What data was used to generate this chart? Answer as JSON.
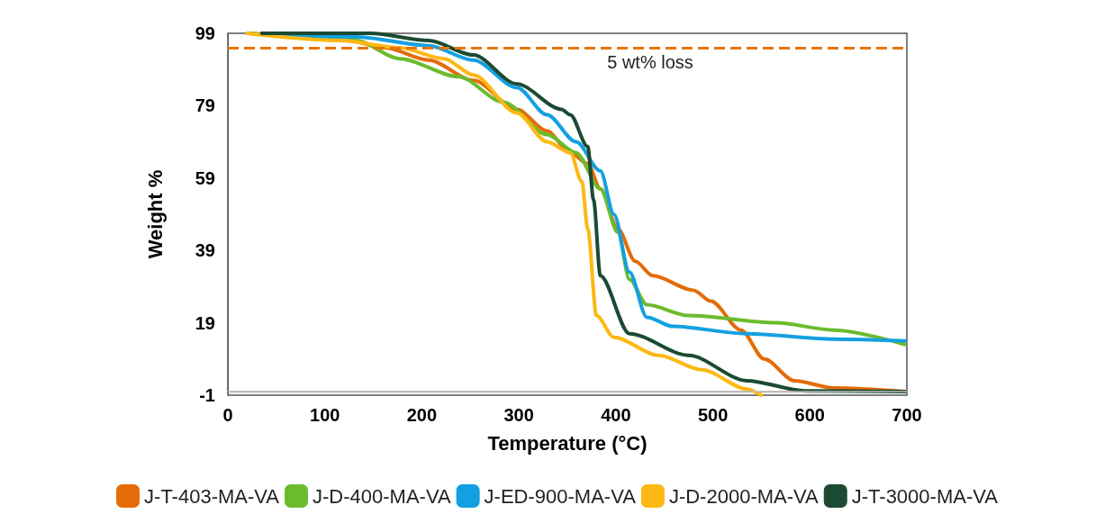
{
  "chart_data": {
    "type": "line",
    "xlabel": "Temperature (°C)",
    "ylabel": "Weight %",
    "xlim": [
      0,
      700
    ],
    "xticks": [
      0,
      100,
      200,
      300,
      400,
      500,
      600,
      700
    ],
    "ylim": [
      -1,
      99
    ],
    "yticks": [
      -1,
      19,
      39,
      59,
      79,
      99
    ],
    "grid": false,
    "legend": "bottom",
    "marker": "none",
    "line_style": "solid",
    "ref_lines": [
      {
        "axis": "y",
        "value": 95,
        "label": "5 wt% loss",
        "color": "#e97400",
        "line_style": "dashed"
      },
      {
        "axis": "y",
        "value": 0,
        "color": "#bfbfbf",
        "line_style": "solid"
      }
    ],
    "series": [
      {
        "name": "J-T-403-MA-VA",
        "color": "#e36c09",
        "x": [
          23,
          116,
          162,
          207,
          253,
          298,
          329,
          353,
          371,
          384,
          402,
          420,
          438,
          480,
          498,
          529,
          553,
          584,
          625,
          698
        ],
        "values": [
          99,
          97.6,
          95,
          91.6,
          86,
          78,
          72,
          66,
          63,
          56,
          45,
          36,
          32,
          28,
          25,
          17,
          9,
          3,
          1,
          0
        ]
      },
      {
        "name": "J-D-400-MA-VA",
        "color": "#6cbb2c",
        "x": [
          23,
          132,
          177,
          238,
          284,
          329,
          359,
          384,
          402,
          414,
          432,
          475,
          565,
          625,
          698
        ],
        "values": [
          99,
          97,
          92,
          87,
          80,
          71,
          66,
          56,
          44,
          31,
          24,
          21,
          19,
          17,
          13
        ]
      },
      {
        "name": "J-ED-900-MA-VA",
        "color": "#13a0e0",
        "x": [
          35,
          132,
          207,
          253,
          298,
          329,
          359,
          384,
          398,
          414,
          432,
          459,
          535,
          625,
          698
        ],
        "values": [
          99,
          98,
          95.6,
          91.6,
          84,
          76.5,
          69,
          61,
          49,
          33,
          20.5,
          18,
          16,
          14.5,
          14
        ]
      },
      {
        "name": "J-D-2000-MA-VA",
        "color": "#fdb813",
        "x": [
          20,
          116,
          177,
          223,
          253,
          298,
          329,
          353,
          365,
          371,
          380,
          398,
          444,
          489,
          535,
          550
        ],
        "values": [
          99,
          97,
          95,
          92,
          87.5,
          77,
          69,
          66,
          58,
          45,
          21,
          15,
          10,
          6,
          0.7,
          -1
        ]
      },
      {
        "name": "J-T-3000-MA-VA",
        "color": "#1b4a33",
        "x": [
          35,
          147,
          207,
          253,
          298,
          344,
          353,
          371,
          377,
          384,
          414,
          475,
          535,
          595,
          698
        ],
        "values": [
          99,
          99,
          97,
          93,
          85,
          78,
          76.5,
          67.7,
          53,
          32,
          16,
          10,
          3,
          0.2,
          0
        ]
      }
    ]
  }
}
